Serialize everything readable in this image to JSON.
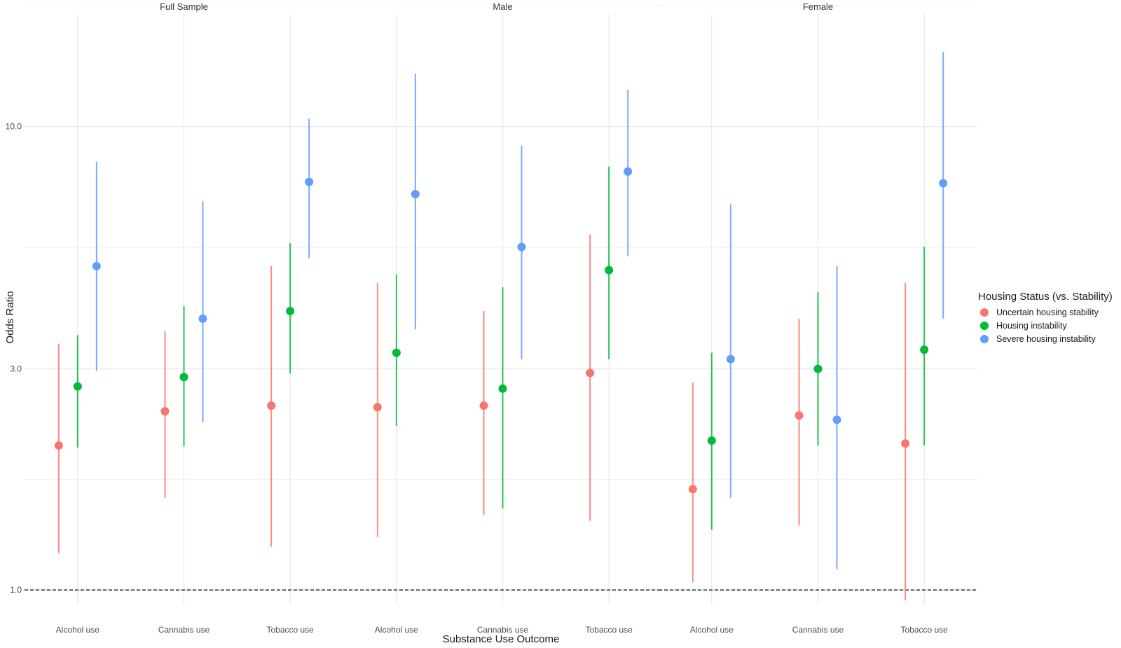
{
  "chart_data": {
    "type": "scatter",
    "subtype": "point-range (odds ratios with confidence intervals), faceted",
    "xlabel": "Substance Use Outcome",
    "ylabel": "Odds Ratio",
    "y_scale": "log",
    "ylim": [
      0.93,
      17.5
    ],
    "y_ticks": [
      1.0,
      3.0,
      10.0
    ],
    "y_tick_labels": [
      "1.0",
      "3.0",
      "10.0"
    ],
    "reference_line": 1.0,
    "grid": true,
    "categories": [
      "Alcohol use",
      "Cannabis use",
      "Tobacco use"
    ],
    "legend": {
      "title": "Housing Status (vs. Stability)",
      "placement": "right"
    },
    "series": [
      {
        "name": "Uncertain housing stability",
        "color": "#F8766D"
      },
      {
        "name": "Housing instability",
        "color": "#00BA38"
      },
      {
        "name": "Severe housing instability",
        "color": "#619CFF"
      }
    ],
    "panels": [
      {
        "title": "Full Sample",
        "data": [
          [
            {
              "or": 2.05,
              "lo": 1.2,
              "hi": 3.4
            },
            {
              "or": 2.75,
              "lo": 2.03,
              "hi": 3.55
            },
            {
              "or": 5.0,
              "lo": 2.97,
              "hi": 8.4
            }
          ],
          [
            {
              "or": 2.43,
              "lo": 1.58,
              "hi": 3.62
            },
            {
              "or": 2.88,
              "lo": 2.04,
              "hi": 4.1
            },
            {
              "or": 3.85,
              "lo": 2.3,
              "hi": 6.9
            }
          ],
          [
            {
              "or": 2.5,
              "lo": 1.24,
              "hi": 5.0
            },
            {
              "or": 4.0,
              "lo": 2.93,
              "hi": 5.6
            },
            {
              "or": 7.6,
              "lo": 5.2,
              "hi": 10.4
            }
          ]
        ]
      },
      {
        "title": "Male",
        "data": [
          [
            {
              "or": 2.48,
              "lo": 1.3,
              "hi": 4.6
            },
            {
              "or": 3.25,
              "lo": 2.26,
              "hi": 4.8
            },
            {
              "or": 7.15,
              "lo": 3.65,
              "hi": 13.0
            }
          ],
          [
            {
              "or": 2.5,
              "lo": 1.45,
              "hi": 4.0
            },
            {
              "or": 2.72,
              "lo": 1.5,
              "hi": 4.5
            },
            {
              "or": 5.5,
              "lo": 3.15,
              "hi": 9.1
            }
          ],
          [
            {
              "or": 2.94,
              "lo": 1.41,
              "hi": 5.85
            },
            {
              "or": 4.9,
              "lo": 3.15,
              "hi": 8.2
            },
            {
              "or": 8.0,
              "lo": 5.25,
              "hi": 12.0
            }
          ]
        ]
      },
      {
        "title": "Female",
        "data": [
          [
            {
              "or": 1.65,
              "lo": 1.04,
              "hi": 2.8
            },
            {
              "or": 2.1,
              "lo": 1.35,
              "hi": 3.25
            },
            {
              "or": 3.15,
              "lo": 1.58,
              "hi": 6.8
            }
          ],
          [
            {
              "or": 2.38,
              "lo": 1.38,
              "hi": 3.85
            },
            {
              "or": 3.0,
              "lo": 2.05,
              "hi": 4.4
            },
            {
              "or": 2.33,
              "lo": 1.11,
              "hi": 5.0
            }
          ],
          [
            {
              "or": 2.07,
              "lo": 0.95,
              "hi": 4.6
            },
            {
              "or": 3.3,
              "lo": 2.05,
              "hi": 5.5
            },
            {
              "or": 7.55,
              "lo": 3.85,
              "hi": 14.5
            }
          ]
        ]
      }
    ]
  }
}
